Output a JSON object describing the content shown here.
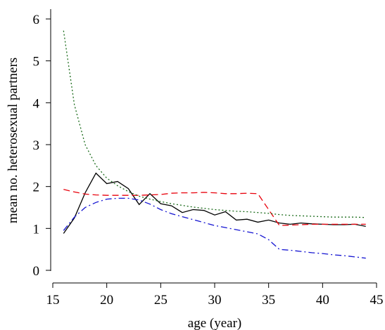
{
  "chart_data": {
    "type": "line",
    "title": "",
    "xlabel": "age (year)",
    "ylabel": "mean no. heterosexual partners",
    "xlim": [
      15,
      45
    ],
    "ylim": [
      0,
      6
    ],
    "xticks": [
      15,
      20,
      25,
      30,
      35,
      40,
      45
    ],
    "yticks": [
      0,
      1,
      2,
      3,
      4,
      5,
      6
    ],
    "grid": false,
    "legend": "none",
    "series": [
      {
        "color": "#000000",
        "dash": "solid",
        "x": [
          16,
          17,
          18,
          19,
          20,
          21,
          22,
          23,
          24,
          25,
          26,
          27,
          28,
          29,
          30,
          31,
          32,
          33,
          34,
          35,
          36,
          37,
          38,
          39,
          40,
          41,
          42,
          43,
          44
        ],
        "y": [
          0.88,
          1.25,
          1.85,
          2.32,
          2.07,
          2.12,
          1.95,
          1.57,
          1.83,
          1.59,
          1.54,
          1.38,
          1.45,
          1.43,
          1.32,
          1.4,
          1.2,
          1.22,
          1.15,
          1.2,
          1.13,
          1.1,
          1.13,
          1.11,
          1.1,
          1.09,
          1.09,
          1.1,
          1.05
        ]
      },
      {
        "color": "#e8000b",
        "dash": "dashed",
        "x": [
          16,
          17,
          18,
          19,
          20,
          21,
          22,
          23,
          24,
          25,
          26,
          27,
          28,
          29,
          30,
          31,
          32,
          33,
          34,
          35,
          36,
          37,
          38,
          39,
          40,
          41,
          42,
          43,
          44
        ],
        "y": [
          1.93,
          1.87,
          1.82,
          1.8,
          1.79,
          1.79,
          1.79,
          1.79,
          1.8,
          1.81,
          1.84,
          1.85,
          1.85,
          1.86,
          1.85,
          1.83,
          1.83,
          1.84,
          1.83,
          1.45,
          1.07,
          1.08,
          1.09,
          1.1,
          1.1,
          1.1,
          1.1,
          1.1,
          1.1
        ]
      },
      {
        "color": "#1a6b1a",
        "dash": "dotted",
        "x": [
          16,
          17,
          18,
          19,
          20,
          21,
          22,
          23,
          24,
          25,
          26,
          27,
          28,
          29,
          30,
          31,
          32,
          33,
          34,
          35,
          36,
          37,
          38,
          39,
          40,
          41,
          42,
          43,
          44
        ],
        "y": [
          5.72,
          3.95,
          3.0,
          2.5,
          2.2,
          2.02,
          1.88,
          1.77,
          1.7,
          1.64,
          1.59,
          1.55,
          1.51,
          1.48,
          1.45,
          1.43,
          1.41,
          1.4,
          1.38,
          1.36,
          1.33,
          1.31,
          1.3,
          1.29,
          1.28,
          1.27,
          1.27,
          1.27,
          1.26
        ]
      },
      {
        "color": "#1414d2",
        "dash": "dashdot",
        "x": [
          16,
          17,
          18,
          19,
          20,
          21,
          22,
          23,
          24,
          25,
          26,
          27,
          28,
          29,
          30,
          31,
          32,
          33,
          34,
          35,
          36,
          37,
          38,
          39,
          40,
          41,
          42,
          43,
          44
        ],
        "y": [
          0.95,
          1.27,
          1.5,
          1.62,
          1.7,
          1.72,
          1.72,
          1.68,
          1.58,
          1.45,
          1.35,
          1.28,
          1.21,
          1.14,
          1.07,
          1.02,
          0.97,
          0.92,
          0.87,
          0.73,
          0.5,
          0.48,
          0.45,
          0.42,
          0.4,
          0.37,
          0.35,
          0.32,
          0.29
        ]
      }
    ]
  }
}
